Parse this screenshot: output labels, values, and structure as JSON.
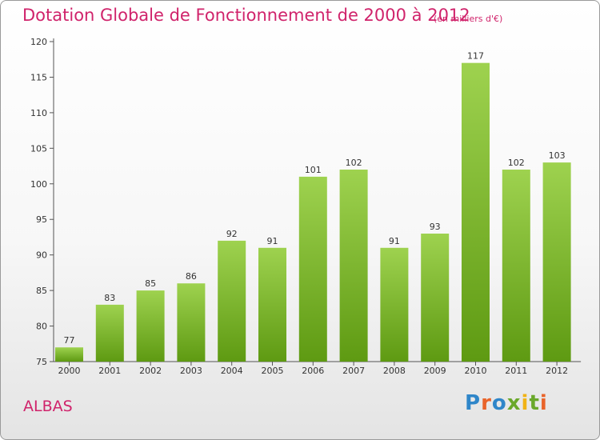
{
  "chart_data": {
    "type": "bar",
    "title": "Dotation Globale de Fonctionnement de 2000 à 2012",
    "subtitle": "(en milliers d'€)",
    "categories": [
      "2000",
      "2001",
      "2002",
      "2003",
      "2004",
      "2005",
      "2006",
      "2007",
      "2008",
      "2009",
      "2010",
      "2011",
      "2012"
    ],
    "values": [
      77,
      83,
      85,
      86,
      92,
      91,
      101,
      102,
      91,
      93,
      117,
      102,
      103
    ],
    "ylim": [
      75,
      120
    ],
    "yticks": [
      75,
      80,
      85,
      90,
      95,
      100,
      105,
      110,
      115,
      120
    ],
    "xlabel": "",
    "ylabel": "",
    "grid": false,
    "colors": {
      "bar_top": "#9ed24f",
      "bar_bottom": "#5e9a12",
      "text": "#d0236b"
    }
  },
  "footer": {
    "commune": "ALBAS",
    "logo_text": "Proxiti",
    "logo_colors": [
      "#2f86c9",
      "#e9642a",
      "#2f86c9",
      "#6aa82b",
      "#f1b316",
      "#6aa82b",
      "#e9642a"
    ]
  }
}
